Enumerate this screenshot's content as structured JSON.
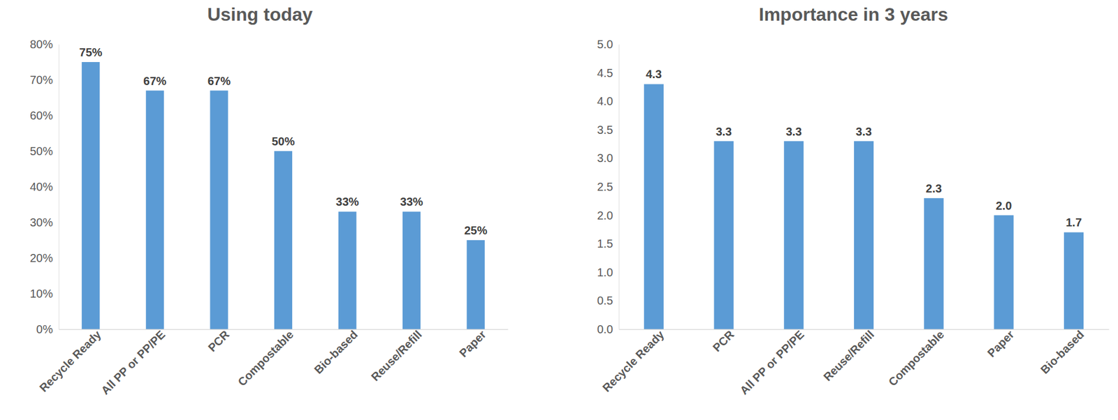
{
  "chart_data": [
    {
      "type": "bar",
      "title": "Using today",
      "categories": [
        "Recycle Ready",
        "All PP or PP/PE",
        "PCR",
        "Compostable",
        "Bio-based",
        "Reuse/Refill",
        "Paper"
      ],
      "values": [
        75,
        67,
        67,
        50,
        33,
        33,
        25
      ],
      "value_labels": [
        "75%",
        "67%",
        "67%",
        "50%",
        "33%",
        "33%",
        "25%"
      ],
      "color": "#5B9BD5",
      "ylim": [
        0,
        80
      ],
      "yticks": [
        {
          "value": 0,
          "label": "0%"
        },
        {
          "value": 10,
          "label": "10%"
        },
        {
          "value": 20,
          "label": "20%"
        },
        {
          "value": 30,
          "label": "30%"
        },
        {
          "value": 40,
          "label": "40%"
        },
        {
          "value": 50,
          "label": "50%"
        },
        {
          "value": 60,
          "label": "60%"
        },
        {
          "value": 70,
          "label": "70%"
        },
        {
          "value": 80,
          "label": "80%"
        }
      ],
      "grid": false,
      "data_labels": true
    },
    {
      "type": "bar",
      "title": "Importance in 3 years",
      "categories": [
        "Recycle Ready",
        "PCR",
        "All PP or PP/PE",
        "Reuse/Refill",
        "Compostable",
        "Paper",
        "Bio-based"
      ],
      "values": [
        4.3,
        3.3,
        3.3,
        3.3,
        2.3,
        2.0,
        1.7
      ],
      "value_labels": [
        "4.3",
        "3.3",
        "3.3",
        "3.3",
        "2.3",
        "2.0",
        "1.7"
      ],
      "color": "#5B9BD5",
      "ylim": [
        0,
        5
      ],
      "yticks": [
        {
          "value": 0,
          "label": "0.0"
        },
        {
          "value": 0.5,
          "label": "0.5"
        },
        {
          "value": 1,
          "label": "1.0"
        },
        {
          "value": 1.5,
          "label": "1.5"
        },
        {
          "value": 2,
          "label": "2.0"
        },
        {
          "value": 2.5,
          "label": "2.5"
        },
        {
          "value": 3,
          "label": "3.0"
        },
        {
          "value": 3.5,
          "label": "3.5"
        },
        {
          "value": 4,
          "label": "4.0"
        },
        {
          "value": 4.5,
          "label": "4.5"
        },
        {
          "value": 5,
          "label": "5.0"
        }
      ],
      "grid": false,
      "data_labels": true
    }
  ]
}
